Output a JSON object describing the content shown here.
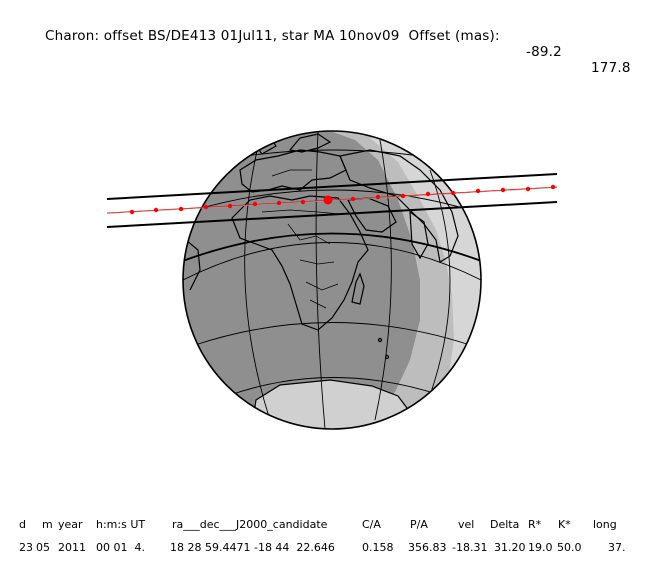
{
  "title": {
    "main": "Charon: offset BS/DE413 01Jul11, star MA 10nov09  Offset (mas):",
    "offset_ra": "-89.2",
    "offset_dec": "177.8"
  },
  "globe_colors": {
    "day": "#bdbdbd",
    "twilight": "#d4d4d4",
    "night": "#8c8c8c",
    "lines": "#000000",
    "track": "#ff0000"
  },
  "table": {
    "headers": [
      "d",
      "m",
      "year",
      "h:m:s UT",
      "ra___dec___J2000_candidate",
      "C/A",
      "P/A",
      "vel",
      "Delta",
      "R*",
      "K*",
      "long"
    ],
    "values": [
      "23",
      "05",
      "2011",
      "00 01  4.",
      "18 28 59.4471 -18 44  22.646",
      "0.158",
      "356.83",
      "-18.31",
      "31.20",
      "19.0",
      "50.0",
      "37."
    ]
  }
}
